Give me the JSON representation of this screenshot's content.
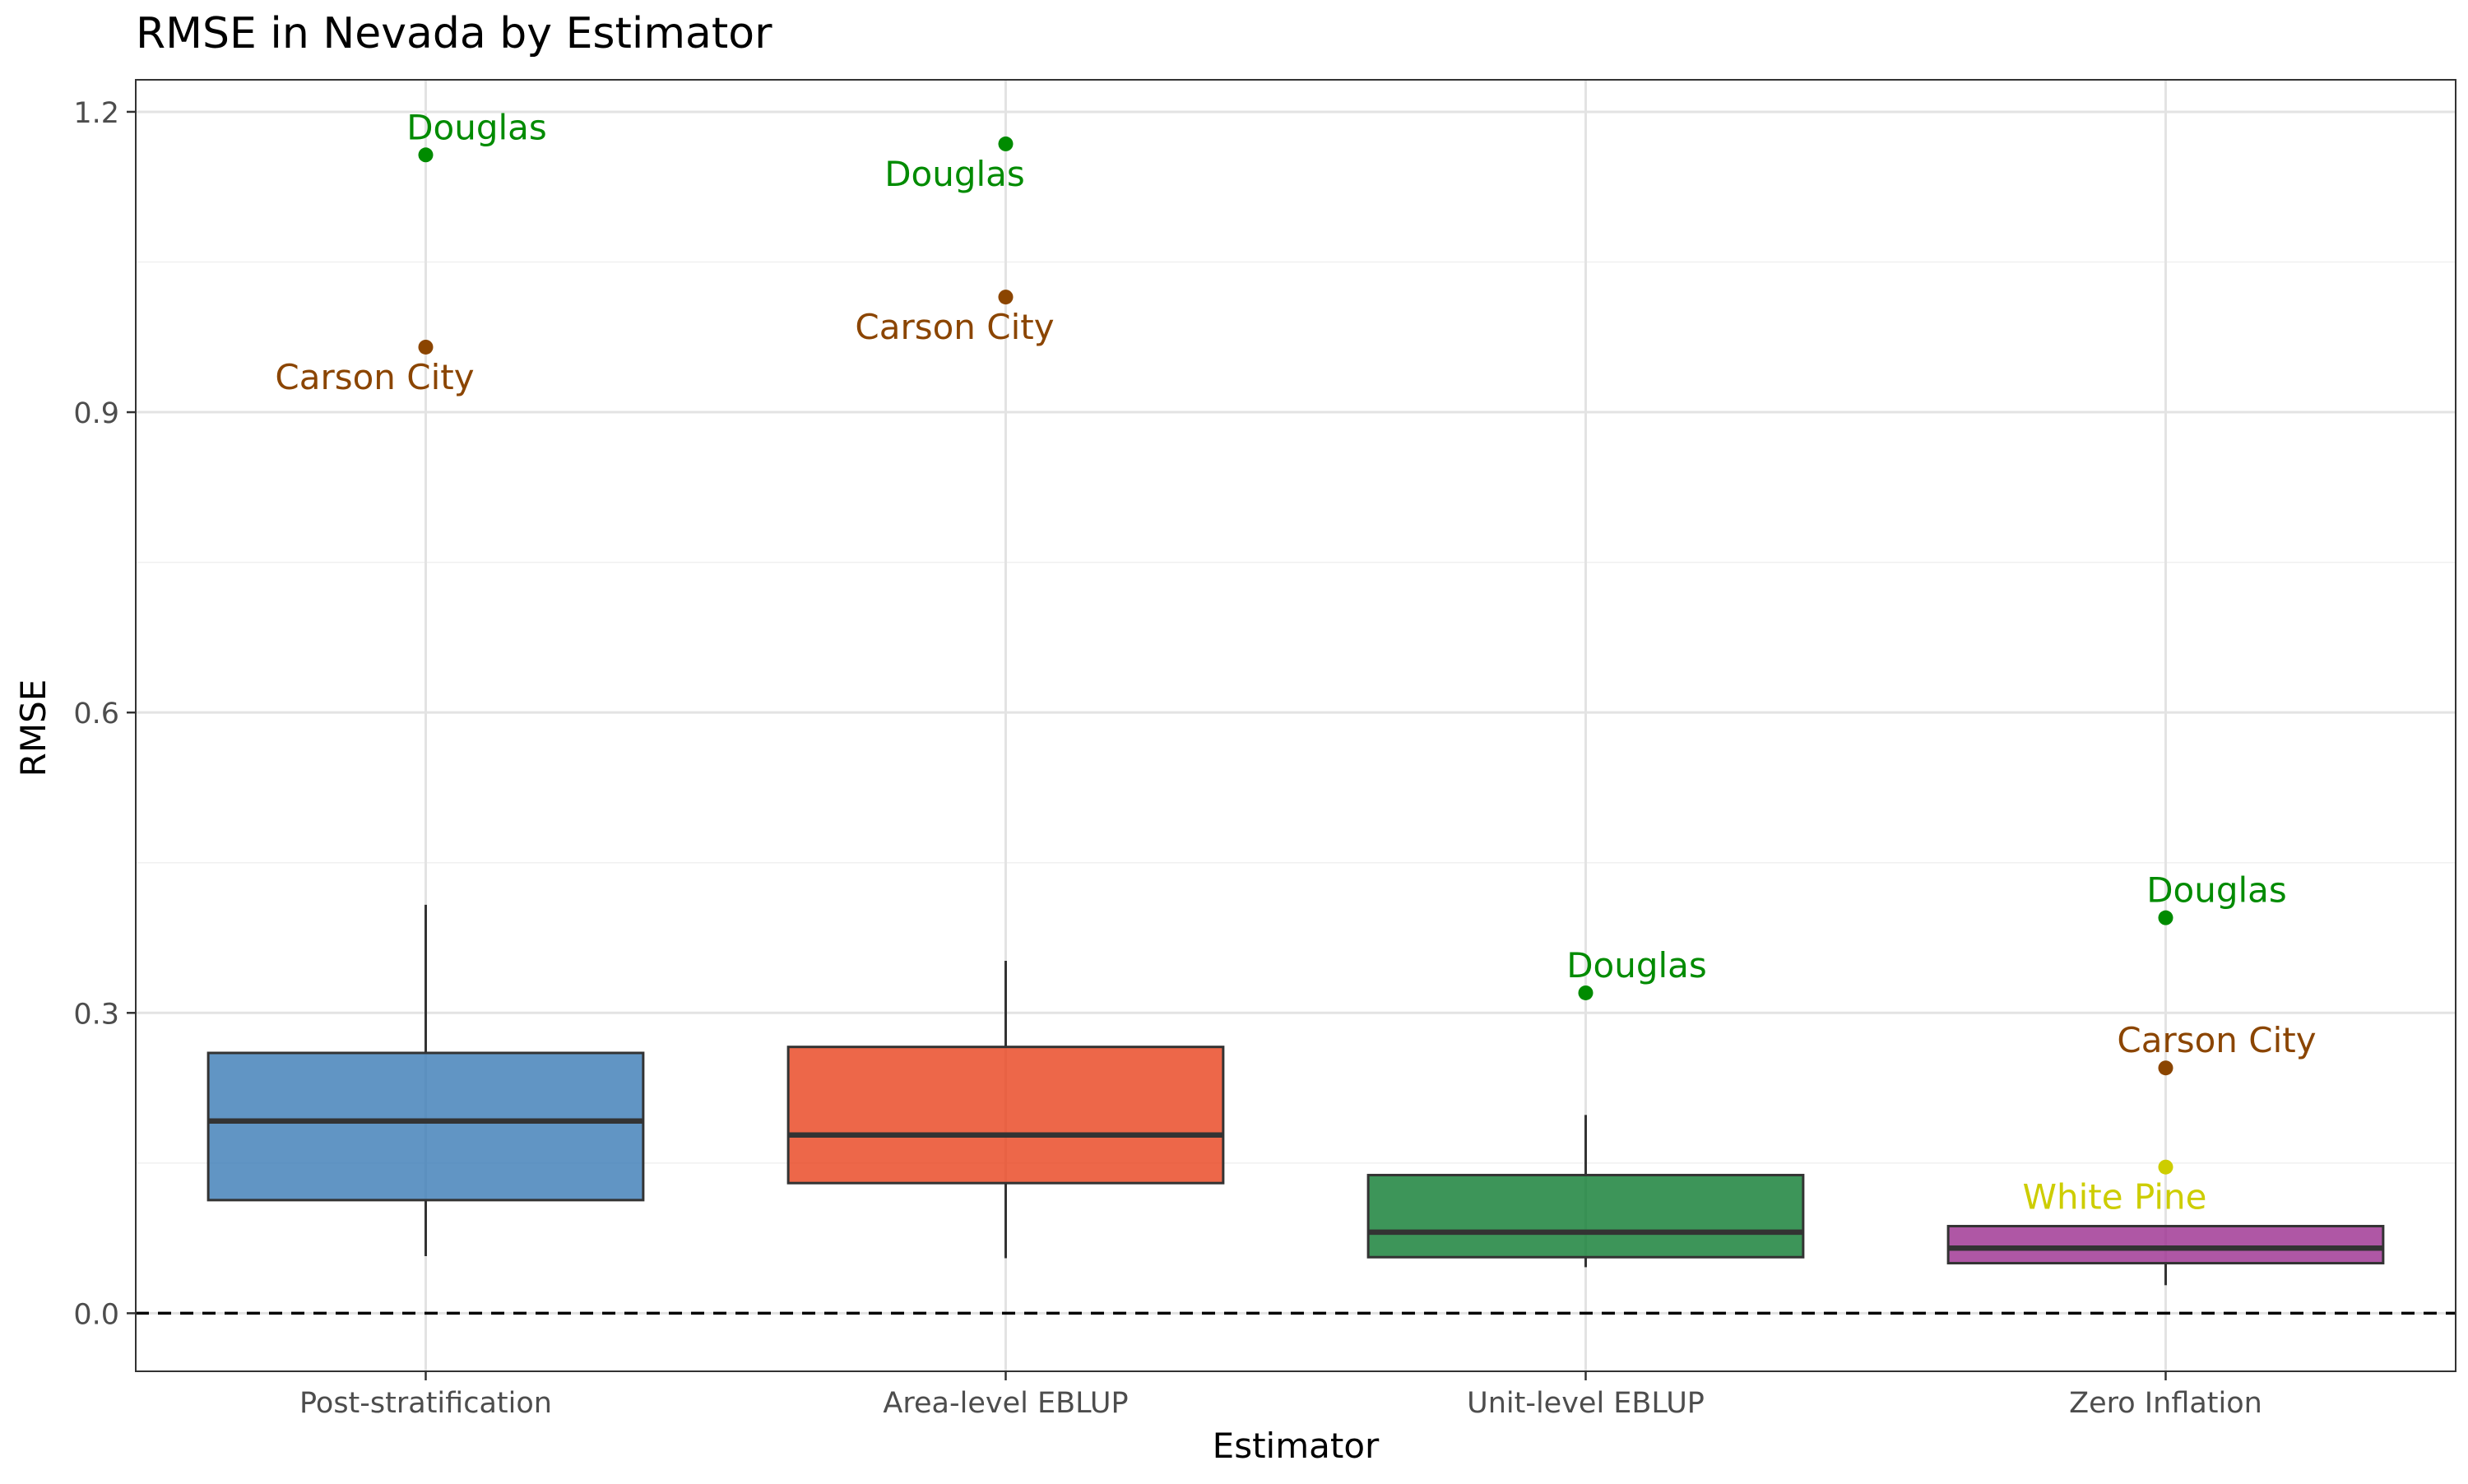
{
  "chart_data": {
    "type": "boxplot",
    "title": "RMSE in Nevada by Estimator",
    "xlabel": "Estimator",
    "ylabel": "RMSE",
    "ylim": [
      -0.058,
      1.232
    ],
    "yticks": [
      0.0,
      0.3,
      0.6,
      0.9,
      1.2
    ],
    "ytick_labels": [
      "0.0",
      "0.3",
      "0.6",
      "0.9",
      "1.2"
    ],
    "y_minor_ticks": [
      0.15,
      0.45,
      0.75,
      1.05
    ],
    "reference_line": {
      "y": 0.0,
      "style": "dashed"
    },
    "categories": [
      "Post-stratification",
      "Area-level EBLUP",
      "Unit-level EBLUP",
      "Zero Inflation"
    ],
    "boxes": [
      {
        "category": "Post-stratification",
        "color": "#3a7bb5",
        "whisker_low": 0.057,
        "q1": 0.113,
        "median": 0.192,
        "q3": 0.26,
        "whisker_high": 0.408
      },
      {
        "category": "Area-level EBLUP",
        "color": "#e8411c",
        "whisker_low": 0.055,
        "q1": 0.13,
        "median": 0.178,
        "q3": 0.266,
        "whisker_high": 0.352
      },
      {
        "category": "Unit-level EBLUP",
        "color": "#0c7a2f",
        "whisker_low": 0.046,
        "q1": 0.056,
        "median": 0.081,
        "q3": 0.138,
        "whisker_high": 0.198
      },
      {
        "category": "Zero Inflation",
        "color": "#9b2d8f",
        "whisker_low": 0.028,
        "q1": 0.05,
        "median": 0.065,
        "q3": 0.087,
        "whisker_high": 0.087
      }
    ],
    "outliers": [
      {
        "category": "Post-stratification",
        "label": "Douglas",
        "value": 1.157,
        "color": "#008b00",
        "label_position": "above-right"
      },
      {
        "category": "Post-stratification",
        "label": "Carson City",
        "value": 0.965,
        "color": "#8b4500",
        "label_position": "below-left"
      },
      {
        "category": "Area-level EBLUP",
        "label": "Douglas",
        "value": 1.168,
        "color": "#008b00",
        "label_position": "below-left"
      },
      {
        "category": "Area-level EBLUP",
        "label": "Carson City",
        "value": 1.015,
        "color": "#8b4500",
        "label_position": "below-left"
      },
      {
        "category": "Unit-level EBLUP",
        "label": "Douglas",
        "value": 0.32,
        "color": "#008b00",
        "label_position": "above-right"
      },
      {
        "category": "Zero Inflation",
        "label": "Douglas",
        "value": 0.395,
        "color": "#008b00",
        "label_position": "above-right"
      },
      {
        "category": "Zero Inflation",
        "label": "Carson City",
        "value": 0.245,
        "color": "#8b4500",
        "label_position": "above-right"
      },
      {
        "category": "Zero Inflation",
        "label": "White Pine",
        "value": 0.146,
        "color": "#cdcd00",
        "label_position": "below-left"
      }
    ],
    "grid": true,
    "theme": "bw"
  }
}
